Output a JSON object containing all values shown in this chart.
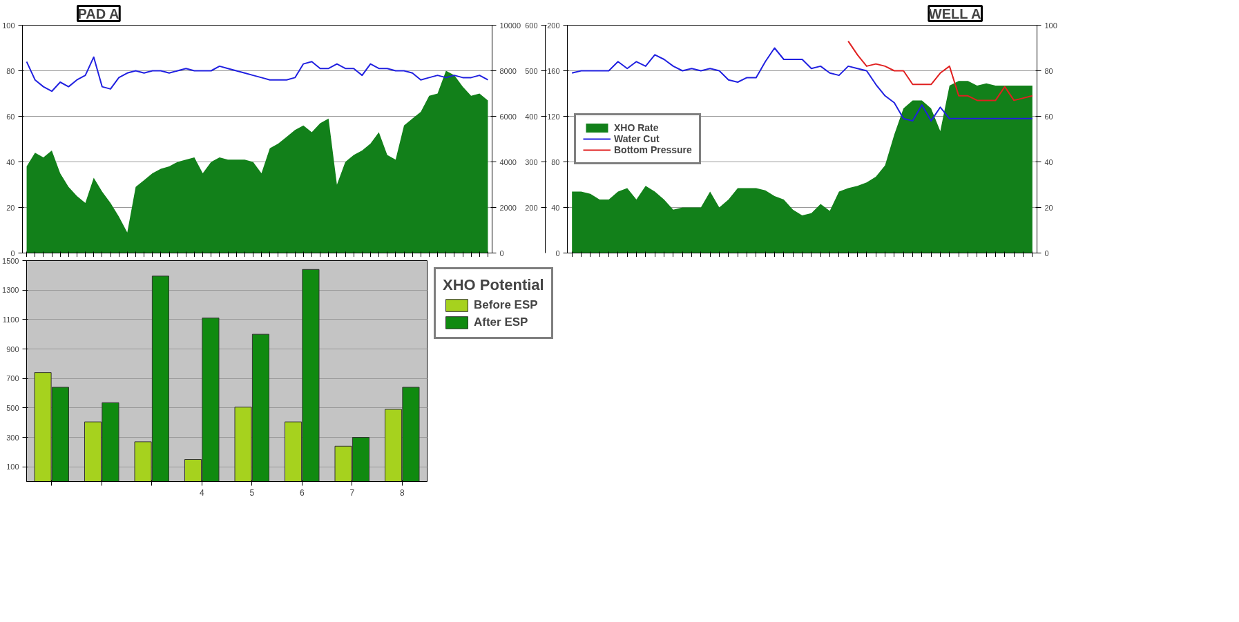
{
  "chart_data": [
    {
      "type": "area",
      "title": "PAD A",
      "categories": [
        null,
        null,
        null,
        null,
        null,
        null,
        null,
        null,
        null,
        null,
        null,
        null,
        null,
        null,
        null,
        null,
        null,
        null,
        null,
        null,
        null,
        null,
        null,
        null,
        null,
        null,
        null,
        null,
        null,
        null,
        null,
        null,
        null,
        null,
        null,
        null,
        null,
        null,
        null,
        null,
        null,
        null,
        null,
        null,
        null,
        null,
        null,
        null,
        null,
        null,
        null,
        null,
        null,
        null,
        null,
        null
      ],
      "ylim": [
        0,
        100
      ],
      "yticks": [
        0,
        20,
        40,
        60,
        80,
        100
      ],
      "y2lim": [
        0,
        10000
      ],
      "y2ticks": [
        0,
        2000,
        4000,
        6000,
        8000,
        10000
      ],
      "grid": "y",
      "tick_labels": "y",
      "series": [
        {
          "type": "area",
          "axis": "y2",
          "color": "#12801a",
          "values": [
            3800,
            4400,
            4200,
            4500,
            3500,
            2900,
            2500,
            2200,
            3300,
            2700,
            2200,
            1600,
            900,
            2900,
            3200,
            3500,
            3700,
            3800,
            4000,
            4100,
            4200,
            3500,
            4000,
            4200,
            4100,
            4100,
            4100,
            4000,
            3500,
            4600,
            4800,
            5100,
            5400,
            5600,
            5300,
            5700,
            5900,
            3000,
            4000,
            4300,
            4500,
            4800,
            5300,
            4300,
            4100,
            5600,
            5900,
            6200,
            6900,
            7000,
            8000,
            7800,
            7300,
            6900,
            7000,
            6700
          ]
        },
        {
          "type": "line",
          "color": "#2020e0",
          "values": [
            84,
            76,
            73,
            71,
            75,
            73,
            76,
            78,
            86,
            73,
            72,
            77,
            79,
            80,
            79,
            80,
            80,
            79,
            80,
            81,
            80,
            80,
            80,
            82,
            81,
            80,
            79,
            78,
            77,
            76,
            76,
            76,
            77,
            83,
            84,
            81,
            81,
            83,
            81,
            81,
            78,
            83,
            81,
            81,
            80,
            80,
            79,
            76,
            77,
            78,
            77,
            78,
            77,
            77,
            78,
            76
          ]
        }
      ]
    },
    {
      "type": "area",
      "title": "WELL A",
      "categories": [
        null,
        null,
        null,
        null,
        null,
        null,
        null,
        null,
        null,
        null,
        null,
        null,
        null,
        null,
        null,
        null,
        null,
        null,
        null,
        null,
        null,
        null,
        null,
        null,
        null,
        null,
        null,
        null,
        null,
        null,
        null,
        null,
        null,
        null,
        null,
        null,
        null,
        null,
        null,
        null,
        null,
        null,
        null,
        null,
        null,
        null,
        null,
        null,
        null,
        null,
        null
      ],
      "ylim": [
        0,
        200
      ],
      "yticks": [
        0,
        40,
        80,
        120,
        160,
        200
      ],
      "y2lim": [
        0,
        100
      ],
      "y2ticks": [
        0,
        20,
        40,
        60,
        80,
        100
      ],
      "y3lim": [
        100,
        600
      ],
      "y3ticks": [
        200,
        300,
        400,
        500,
        600
      ],
      "grid": "y",
      "tick_labels": "y",
      "legend": "left",
      "series": [
        {
          "name": "XHO Rate",
          "type": "area",
          "color": "#12801a",
          "values": [
            54,
            54,
            52,
            47,
            47,
            54,
            57,
            47,
            59,
            54,
            47,
            38,
            40,
            40,
            40,
            54,
            40,
            47,
            57,
            57,
            57,
            55,
            50,
            47,
            38,
            33,
            35,
            43,
            37,
            54,
            57,
            59,
            62,
            67,
            77,
            104,
            127,
            134,
            134,
            127,
            107,
            147,
            151,
            151,
            147,
            149,
            147,
            147,
            147,
            147,
            147
          ]
        },
        {
          "name": "Water Cut",
          "type": "line",
          "axis": "y2",
          "color": "#2020e0",
          "values": [
            79,
            80,
            80,
            80,
            80,
            84,
            81,
            84,
            82,
            87,
            85,
            82,
            80,
            81,
            80,
            81,
            80,
            76,
            75,
            77,
            77,
            84,
            90,
            85,
            85,
            85,
            81,
            82,
            79,
            78,
            82,
            81,
            80,
            74,
            69,
            66,
            59,
            58,
            65,
            58,
            64,
            59,
            59,
            59,
            59,
            59,
            59,
            59,
            59,
            59,
            59
          ]
        },
        {
          "name": "Bottom Pressure",
          "type": "line",
          "axis": "y3",
          "color": "#e02020",
          "values": [
            null,
            null,
            null,
            null,
            null,
            null,
            null,
            null,
            null,
            null,
            null,
            null,
            null,
            null,
            null,
            null,
            null,
            null,
            null,
            null,
            null,
            null,
            null,
            null,
            null,
            null,
            null,
            null,
            null,
            null,
            565,
            535,
            510,
            515,
            510,
            500,
            500,
            470,
            470,
            470,
            495,
            510,
            445,
            445,
            435,
            435,
            435,
            465,
            435,
            440,
            445
          ]
        }
      ]
    },
    {
      "type": "bar",
      "legend_title": "XHO Potential",
      "categories": [
        null,
        null,
        null,
        "4",
        "5",
        "6",
        "7",
        "8"
      ],
      "ylim": [
        0,
        1500
      ],
      "yticks": [
        100,
        300,
        500,
        700,
        900,
        1100,
        1300,
        1500
      ],
      "grid": "y",
      "legend": "right",
      "series": [
        {
          "name": "Before ESP",
          "color": "#a6d21e",
          "values": [
            740,
            405,
            270,
            150,
            505,
            405,
            240,
            490
          ]
        },
        {
          "name": "After ESP",
          "color": "#108a10",
          "values": [
            640,
            535,
            1395,
            1110,
            1000,
            1440,
            300,
            640
          ]
        }
      ]
    }
  ]
}
